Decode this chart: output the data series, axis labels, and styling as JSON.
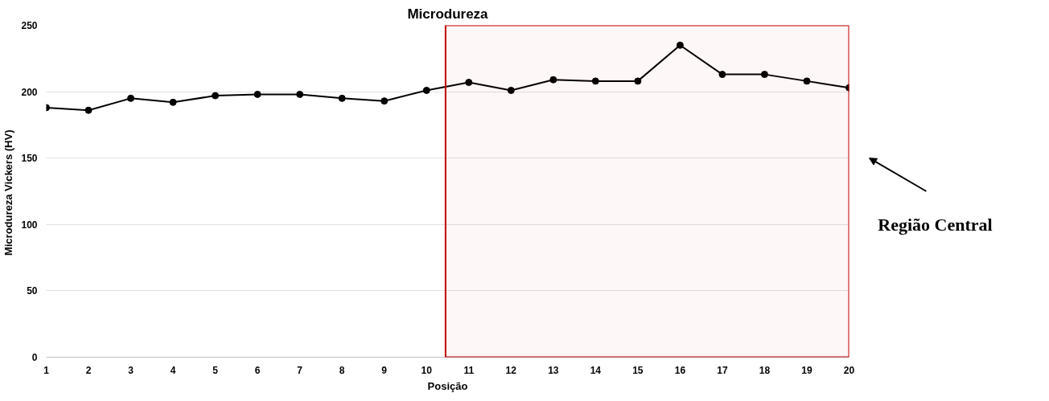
{
  "chart_data": {
    "type": "line",
    "title": "Microdureza",
    "xlabel": "Posição",
    "ylabel": "Microdureza Vickers  (HV)",
    "x": [
      1,
      2,
      3,
      4,
      5,
      6,
      7,
      8,
      9,
      10,
      11,
      12,
      13,
      14,
      15,
      16,
      17,
      18,
      19,
      20
    ],
    "series": [
      {
        "color": "#000000",
        "values": [
          188,
          186,
          195,
          192,
          197,
          198,
          198,
          195,
          193,
          201,
          207,
          201,
          209,
          208,
          208,
          235,
          213,
          213,
          208,
          203
        ]
      }
    ],
    "xlim": [
      1,
      20
    ],
    "xticks": [
      1,
      2,
      3,
      4,
      5,
      6,
      7,
      8,
      9,
      10,
      11,
      12,
      13,
      14,
      15,
      16,
      17,
      18,
      19,
      20
    ],
    "ylim": [
      0,
      250
    ],
    "yticks": [
      0,
      50,
      100,
      150,
      200,
      250
    ],
    "grid": "y",
    "marker": "circle",
    "line_style": "solid",
    "bands": [
      {
        "axis": "x",
        "from": 10.45,
        "to": 20,
        "label": "Região Central",
        "color": "#c00000"
      }
    ]
  }
}
